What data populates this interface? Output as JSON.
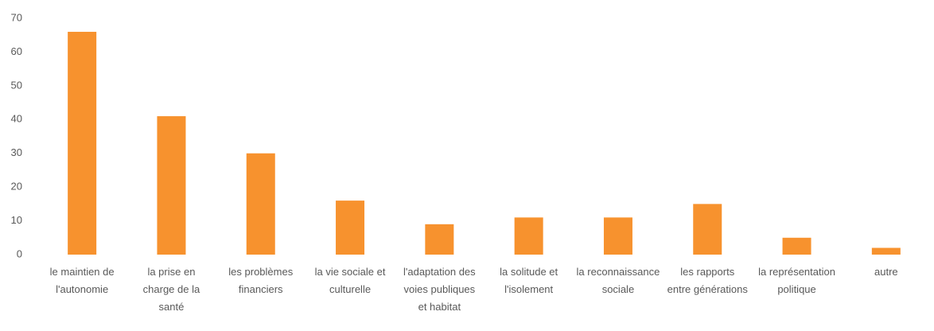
{
  "chart_data": {
    "type": "bar",
    "categories": [
      "le maintien de l'autonomie",
      "la prise en charge de la santé",
      "les problèmes financiers",
      "la vie sociale et culturelle",
      "l'adaptation des voies publiques et habitat",
      "la solitude et l'isolement",
      "la reconnaissance sociale",
      "les rapports entre générations",
      "la représentation politique",
      "autre"
    ],
    "values": [
      66,
      41,
      30,
      16,
      9,
      11,
      11,
      15,
      5,
      2
    ],
    "color": "#f7922e",
    "ylim": [
      0,
      70
    ],
    "yticks": [
      0,
      10,
      20,
      30,
      40,
      50,
      60,
      70
    ],
    "grid": false
  }
}
